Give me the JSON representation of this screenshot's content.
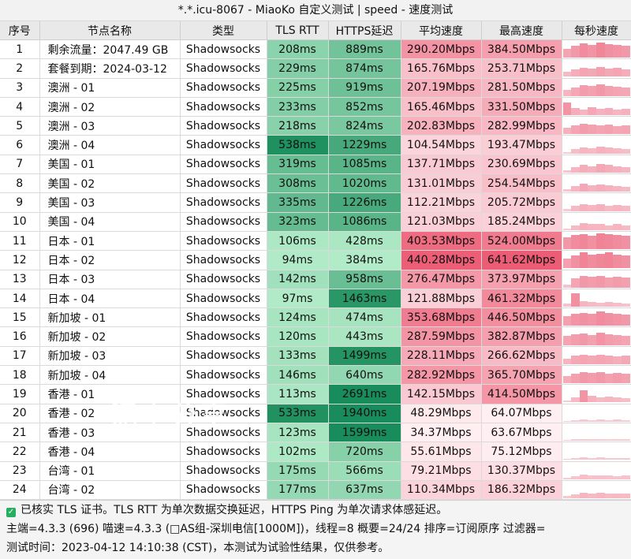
{
  "window": {
    "title": "*.*.icu-8067 - MiaoKo 自定义测试 | speed - 速度测试"
  },
  "columns": [
    "序号",
    "节点名称",
    "类型",
    "TLS RTT",
    "HTTPS延迟",
    "平均速度",
    "最高速度",
    "每秒速度"
  ],
  "rows": [
    {
      "index": "1",
      "name": "剩余流量：2047.49 GB",
      "type": "Shadowsocks",
      "tls_rtt": "208ms",
      "https": "889ms",
      "avg": "290.20Mbps",
      "max": "384.50Mbps",
      "spark": [
        0.55,
        0.7,
        0.85,
        0.75,
        0.9,
        0.8,
        0.75,
        0.7
      ]
    },
    {
      "index": "2",
      "name": "套餐到期：2024-03-12",
      "type": "Shadowsocks",
      "tls_rtt": "229ms",
      "https": "874ms",
      "avg": "165.76Mbps",
      "max": "253.71Mbps",
      "spark": [
        0.3,
        0.45,
        0.55,
        0.5,
        0.6,
        0.5,
        0.55,
        0.45
      ]
    },
    {
      "index": "3",
      "name": "澳洲 - 01",
      "type": "Shadowsocks",
      "tls_rtt": "225ms",
      "https": "919ms",
      "avg": "207.19Mbps",
      "max": "281.50Mbps",
      "spark": [
        0.35,
        0.5,
        0.65,
        0.6,
        0.7,
        0.6,
        0.55,
        0.5
      ]
    },
    {
      "index": "4",
      "name": "澳洲 - 02",
      "type": "Shadowsocks",
      "tls_rtt": "233ms",
      "https": "852ms",
      "avg": "165.46Mbps",
      "max": "331.50Mbps",
      "spark": [
        0.75,
        0.45,
        0.35,
        0.5,
        0.4,
        0.45,
        0.35,
        0.4
      ]
    },
    {
      "index": "5",
      "name": "澳洲 - 03",
      "type": "Shadowsocks",
      "tls_rtt": "218ms",
      "https": "824ms",
      "avg": "202.83Mbps",
      "max": "282.99Mbps",
      "spark": [
        0.4,
        0.55,
        0.65,
        0.6,
        0.55,
        0.6,
        0.5,
        0.55
      ]
    },
    {
      "index": "6",
      "name": "澳洲 - 04",
      "type": "Shadowsocks",
      "tls_rtt": "538ms",
      "https": "1229ms",
      "avg": "104.54Mbps",
      "max": "193.47Mbps",
      "spark": [
        0.1,
        0.25,
        0.35,
        0.3,
        0.4,
        0.35,
        0.3,
        0.25
      ]
    },
    {
      "index": "7",
      "name": "美国 - 01",
      "type": "Shadowsocks",
      "tls_rtt": "319ms",
      "https": "1085ms",
      "avg": "137.71Mbps",
      "max": "230.69Mbps",
      "spark": [
        0.15,
        0.35,
        0.45,
        0.4,
        0.5,
        0.45,
        0.4,
        0.35
      ]
    },
    {
      "index": "8",
      "name": "美国 - 02",
      "type": "Shadowsocks",
      "tls_rtt": "308ms",
      "https": "1020ms",
      "avg": "131.01Mbps",
      "max": "254.54Mbps",
      "spark": [
        0.15,
        0.35,
        0.5,
        0.4,
        0.45,
        0.4,
        0.35,
        0.3
      ]
    },
    {
      "index": "9",
      "name": "美国 - 03",
      "type": "Shadowsocks",
      "tls_rtt": "335ms",
      "https": "1226ms",
      "avg": "112.21Mbps",
      "max": "205.72Mbps",
      "spark": [
        0.1,
        0.3,
        0.4,
        0.35,
        0.4,
        0.3,
        0.35,
        0.3
      ]
    },
    {
      "index": "10",
      "name": "美国 - 04",
      "type": "Shadowsocks",
      "tls_rtt": "323ms",
      "https": "1086ms",
      "avg": "121.03Mbps",
      "max": "185.24Mbps",
      "spark": [
        0.1,
        0.3,
        0.4,
        0.35,
        0.35,
        0.3,
        0.35,
        0.3
      ]
    },
    {
      "index": "11",
      "name": "日本 - 01",
      "type": "Shadowsocks",
      "tls_rtt": "106ms",
      "https": "428ms",
      "avg": "403.53Mbps",
      "max": "524.00Mbps",
      "spark": [
        0.7,
        0.85,
        0.9,
        0.8,
        0.95,
        0.9,
        0.85,
        0.8
      ]
    },
    {
      "index": "12",
      "name": "日本 - 02",
      "type": "Shadowsocks",
      "tls_rtt": "94ms",
      "https": "384ms",
      "avg": "440.28Mbps",
      "max": "641.62Mbps",
      "spark": [
        0.6,
        0.8,
        0.95,
        0.85,
        0.9,
        0.95,
        0.85,
        0.8
      ]
    },
    {
      "index": "13",
      "name": "日本 - 03",
      "type": "Shadowsocks",
      "tls_rtt": "142ms",
      "https": "958ms",
      "avg": "276.47Mbps",
      "max": "373.97Mbps",
      "spark": [
        0.2,
        0.55,
        0.7,
        0.65,
        0.7,
        0.6,
        0.65,
        0.6
      ]
    },
    {
      "index": "14",
      "name": "日本 - 04",
      "type": "Shadowsocks",
      "tls_rtt": "97ms",
      "https": "1463ms",
      "avg": "121.88Mbps",
      "max": "461.32Mbps",
      "spark": [
        0.2,
        0.8,
        0.35,
        0.3,
        0.25,
        0.3,
        0.25,
        0.2
      ]
    },
    {
      "index": "15",
      "name": "新加坡 - 01",
      "type": "Shadowsocks",
      "tls_rtt": "124ms",
      "https": "474ms",
      "avg": "353.68Mbps",
      "max": "446.50Mbps",
      "spark": [
        0.6,
        0.75,
        0.8,
        0.75,
        0.85,
        0.8,
        0.75,
        0.7
      ]
    },
    {
      "index": "16",
      "name": "新加坡 - 02",
      "type": "Shadowsocks",
      "tls_rtt": "120ms",
      "https": "443ms",
      "avg": "287.59Mbps",
      "max": "382.87Mbps",
      "spark": [
        0.55,
        0.65,
        0.7,
        0.6,
        0.75,
        0.65,
        0.6,
        0.55
      ]
    },
    {
      "index": "17",
      "name": "新加坡 - 03",
      "type": "Shadowsocks",
      "tls_rtt": "133ms",
      "https": "1499ms",
      "avg": "228.11Mbps",
      "max": "266.62Mbps",
      "spark": [
        0.35,
        0.5,
        0.55,
        0.5,
        0.55,
        0.5,
        0.45,
        0.5
      ]
    },
    {
      "index": "18",
      "name": "新加坡 - 04",
      "type": "Shadowsocks",
      "tls_rtt": "146ms",
      "https": "640ms",
      "avg": "282.92Mbps",
      "max": "365.70Mbps",
      "spark": [
        0.45,
        0.6,
        0.7,
        0.65,
        0.7,
        0.6,
        0.65,
        0.6
      ]
    },
    {
      "index": "19",
      "name": "香港 - 01",
      "type": "Shadowsocks",
      "tls_rtt": "113ms",
      "https": "2691ms",
      "avg": "142.15Mbps",
      "max": "414.50Mbps",
      "spark": [
        0.1,
        0.3,
        0.75,
        0.4,
        0.3,
        0.35,
        0.3,
        0.25
      ]
    },
    {
      "index": "20",
      "name": "香港 - 02",
      "type": "Shadowsocks",
      "tls_rtt": "533ms",
      "https": "1940ms",
      "avg": "48.29Mbps",
      "max": "64.07Mbps",
      "spark": [
        0.05,
        0.1,
        0.12,
        0.1,
        0.12,
        0.1,
        0.12,
        0.1
      ]
    },
    {
      "index": "21",
      "name": "香港 - 03",
      "type": "Shadowsocks",
      "tls_rtt": "123ms",
      "https": "1599ms",
      "avg": "34.37Mbps",
      "max": "63.67Mbps",
      "spark": [
        0.05,
        0.1,
        0.12,
        0.1,
        0.1,
        0.08,
        0.1,
        0.08
      ]
    },
    {
      "index": "22",
      "name": "香港 - 04",
      "type": "Shadowsocks",
      "tls_rtt": "102ms",
      "https": "720ms",
      "avg": "55.61Mbps",
      "max": "75.12Mbps",
      "spark": [
        0.08,
        0.12,
        0.15,
        0.12,
        0.14,
        0.12,
        0.13,
        0.12
      ]
    },
    {
      "index": "23",
      "name": "台湾 - 01",
      "type": "Shadowsocks",
      "tls_rtt": "175ms",
      "https": "566ms",
      "avg": "79.21Mbps",
      "max": "130.37Mbps",
      "spark": [
        0.1,
        0.18,
        0.25,
        0.2,
        0.22,
        0.2,
        0.18,
        0.2
      ]
    },
    {
      "index": "24",
      "name": "台湾 - 02",
      "type": "Shadowsocks",
      "tls_rtt": "177ms",
      "https": "637ms",
      "avg": "110.34Mbps",
      "max": "186.32Mbps",
      "spark": [
        0.12,
        0.25,
        0.35,
        0.3,
        0.32,
        0.28,
        0.3,
        0.28
      ]
    }
  ],
  "footer": {
    "line1": "已核实 TLS 证书。TLS RTT 为单次数据交换延迟，HTTPS Ping 为单次请求体感延迟。",
    "line2": "主端=4.3.3 (696) 喵速=4.3.3 (□AS组-深圳电信[1000M])，线程=8 概要=24/24 排序=订阅原序 过滤器=",
    "line3": "测试时间：2023-04-12 14:10:38 (CST)，本测试为试验性结果，仅供参考。"
  },
  "watermark": {
    "text": "泥土分享"
  },
  "colors": {
    "accent": "#27ae60",
    "spark": "#ef7f93"
  }
}
